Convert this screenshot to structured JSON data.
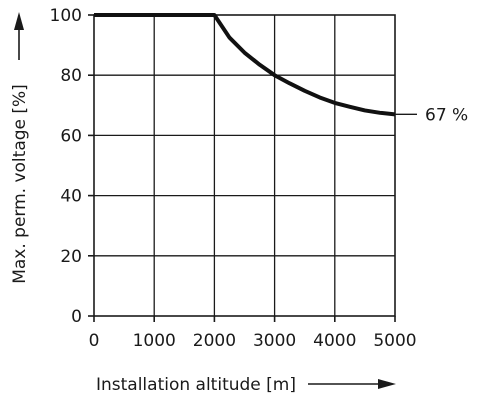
{
  "chart_data": {
    "type": "line",
    "xlabel": "Installation altitude [m]",
    "ylabel": "Max. perm. voltage [%]",
    "xlim": [
      0,
      5000
    ],
    "ylim": [
      0,
      100
    ],
    "x_ticks": [
      "0",
      "1000",
      "2000",
      "3000",
      "4000",
      "5000"
    ],
    "y_ticks": [
      "0",
      "20",
      "40",
      "60",
      "80",
      "100"
    ],
    "grid": true,
    "series": [
      {
        "x": [
          0,
          500,
          1000,
          1500,
          2000,
          2250,
          2500,
          2750,
          3000,
          3250,
          3500,
          3750,
          4000,
          4250,
          4500,
          4750,
          5000
        ],
        "values": [
          100,
          100,
          100,
          100,
          100,
          92.5,
          87.5,
          83.5,
          80,
          77.3,
          74.8,
          72.6,
          70.8,
          69.5,
          68.3,
          67.5,
          67
        ]
      }
    ],
    "annotations": [
      {
        "text": "67 %",
        "x": 5000,
        "y": 67
      }
    ],
    "color": "#111111"
  }
}
